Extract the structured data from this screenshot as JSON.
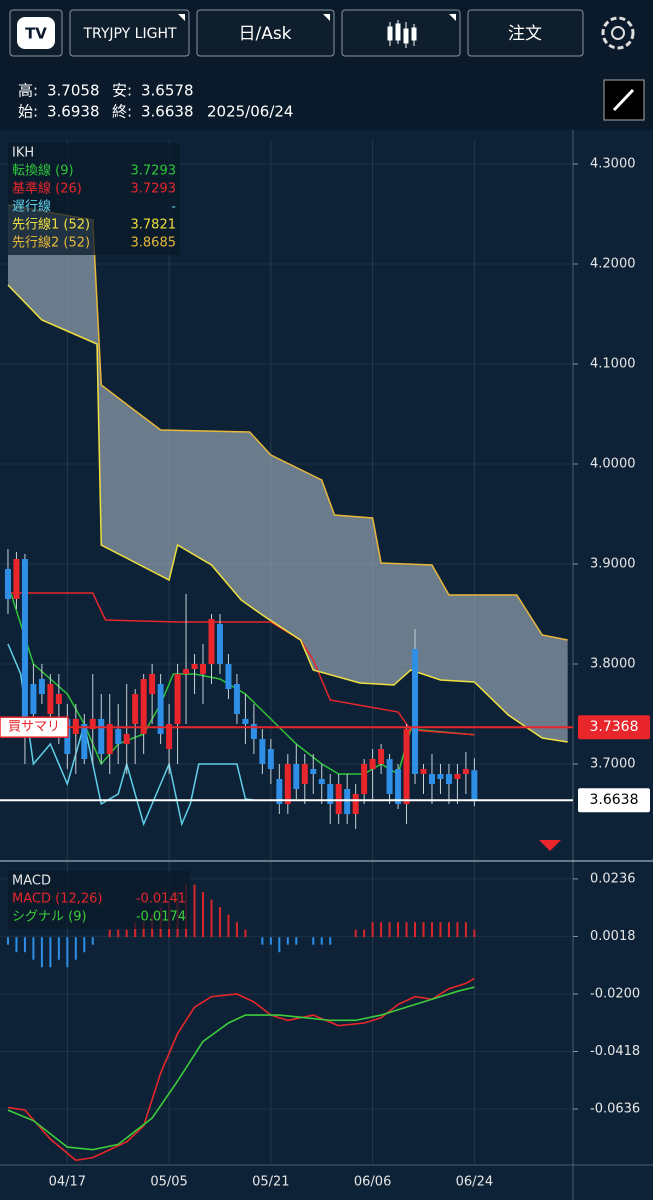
{
  "toolbar": {
    "symbol": "TRYJPY LIGHT",
    "price_type": "日/Ask",
    "order": "注文"
  },
  "info": {
    "high_label": "高:",
    "high": "3.7058",
    "low_label": "安:",
    "low": "3.6578",
    "open_label": "始:",
    "open": "3.6938",
    "close_label": "終:",
    "close": "3.6638",
    "date": "2025/06/24"
  },
  "chart_data": [
    {
      "type": "candlestick",
      "title": "IKH",
      "xlim": [
        -0.94,
        66.63
      ],
      "xticks": [
        {
          "value": 7,
          "label": "04/17"
        },
        {
          "value": 19,
          "label": "05/05"
        },
        {
          "value": 31,
          "label": "05/21"
        },
        {
          "value": 43,
          "label": "06/06"
        },
        {
          "value": 55,
          "label": "06/24"
        }
      ],
      "ylim": [
        3.604,
        4.324
      ],
      "yticks": [
        {
          "value": 3.7,
          "label": "3.7000"
        },
        {
          "value": 3.8,
          "label": "3.8000"
        },
        {
          "value": 3.9,
          "label": "3.9000"
        },
        {
          "value": 4.0,
          "label": "4.0000"
        },
        {
          "value": 4.1,
          "label": "4.1000"
        },
        {
          "value": 4.2,
          "label": "4.2000"
        },
        {
          "value": 4.3,
          "label": "4.3000"
        }
      ],
      "grid": true,
      "candles": {
        "up_color": "#e8262b",
        "down_color": "#2f8fe6",
        "open": [
          3.895,
          3.865,
          3.905,
          3.78,
          3.785,
          3.75,
          3.76,
          3.745,
          3.73,
          3.74,
          3.735,
          3.745,
          3.71,
          3.735,
          3.72,
          3.74,
          3.73,
          3.77,
          3.78,
          3.715,
          3.74,
          3.79,
          3.795,
          3.79,
          3.8,
          3.84,
          3.8,
          3.78,
          3.745,
          3.74,
          3.725,
          3.715,
          3.685,
          3.66,
          3.7,
          3.68,
          3.695,
          3.685,
          3.68,
          3.65,
          3.675,
          3.65,
          3.67,
          3.695,
          3.7,
          3.705,
          3.695,
          3.66,
          3.815,
          3.69,
          3.69,
          3.69,
          3.69,
          3.685,
          3.69,
          3.6938
        ],
        "high": [
          3.915,
          3.912,
          3.91,
          3.8,
          3.8,
          3.79,
          3.79,
          3.76,
          3.76,
          3.75,
          3.79,
          3.77,
          3.77,
          3.76,
          3.78,
          3.775,
          3.79,
          3.8,
          3.79,
          3.76,
          3.8,
          3.87,
          3.81,
          3.82,
          3.85,
          3.85,
          3.81,
          3.79,
          3.77,
          3.76,
          3.735,
          3.725,
          3.7,
          3.71,
          3.72,
          3.71,
          3.71,
          3.7,
          3.69,
          3.69,
          3.69,
          3.68,
          3.705,
          3.715,
          3.72,
          3.71,
          3.7,
          3.74,
          3.835,
          3.7,
          3.71,
          3.7,
          3.7,
          3.7,
          3.712,
          3.7058
        ],
        "low": [
          3.85,
          3.855,
          3.7,
          3.745,
          3.76,
          3.735,
          3.72,
          3.695,
          3.69,
          3.7,
          3.7,
          3.7,
          3.69,
          3.7,
          3.69,
          3.7,
          3.71,
          3.74,
          3.72,
          3.69,
          3.7,
          3.74,
          3.77,
          3.76,
          3.78,
          3.79,
          3.765,
          3.74,
          3.72,
          3.71,
          3.69,
          3.68,
          3.65,
          3.65,
          3.665,
          3.66,
          3.67,
          3.66,
          3.64,
          3.64,
          3.64,
          3.635,
          3.66,
          3.665,
          3.69,
          3.66,
          3.655,
          3.64,
          3.68,
          3.67,
          3.66,
          3.67,
          3.66,
          3.66,
          3.67,
          3.6578
        ],
        "close": [
          3.865,
          3.905,
          3.735,
          3.75,
          3.77,
          3.78,
          3.77,
          3.71,
          3.745,
          3.705,
          3.745,
          3.71,
          3.74,
          3.72,
          3.73,
          3.77,
          3.785,
          3.79,
          3.73,
          3.74,
          3.79,
          3.795,
          3.8,
          3.8,
          3.845,
          3.8,
          3.775,
          3.75,
          3.74,
          3.725,
          3.7,
          3.695,
          3.66,
          3.7,
          3.675,
          3.7,
          3.69,
          3.68,
          3.66,
          3.68,
          3.65,
          3.67,
          3.7,
          3.705,
          3.715,
          3.67,
          3.66,
          3.735,
          3.69,
          3.695,
          3.68,
          3.685,
          3.68,
          3.69,
          3.695,
          3.6638
        ]
      },
      "cloud_color": "#a9b8c6",
      "series": [
        {
          "name": "転換線 (9)",
          "legend_value": "3.7293",
          "color": "#2fc43a",
          "x": [
            0,
            3,
            7,
            9,
            11,
            13,
            16,
            18,
            19.5,
            22,
            25,
            28,
            31,
            34,
            37,
            39,
            42,
            44,
            46,
            47.5,
            55
          ],
          "values": [
            3.88,
            3.8,
            3.77,
            3.74,
            3.7,
            3.72,
            3.73,
            3.76,
            3.79,
            3.79,
            3.785,
            3.77,
            3.745,
            3.72,
            3.7,
            3.69,
            3.69,
            3.7,
            3.69,
            3.735,
            3.7293
          ]
        },
        {
          "name": "基準線 (26)",
          "legend_value": "3.7293",
          "color": "#e8262b",
          "x": [
            0,
            10,
            11.5,
            20,
            31,
            34.5,
            36,
            38,
            42,
            46,
            47.5,
            55
          ],
          "values": [
            3.871,
            3.871,
            3.844,
            3.842,
            3.842,
            3.824,
            3.804,
            3.764,
            3.758,
            3.752,
            3.734,
            3.7293
          ]
        },
        {
          "name": "遅行線",
          "legend_value": "-",
          "color": "#5fd0e8",
          "x": [
            0,
            1.5,
            3,
            5,
            7,
            9,
            11,
            13,
            14,
            16,
            17.5,
            19,
            20.5,
            21.5,
            22.5,
            25,
            27,
            28,
            29
          ],
          "values": [
            3.82,
            3.79,
            3.7,
            3.72,
            3.68,
            3.74,
            3.66,
            3.67,
            3.7,
            3.64,
            3.67,
            3.7,
            3.64,
            3.66,
            3.7,
            3.7,
            3.7,
            3.665,
            3.664
          ]
        },
        {
          "name": "先行線1 (52)",
          "legend_value": "3.7821",
          "color": "#f0e040",
          "x": [
            0,
            4,
            10.5,
            11,
            19,
            20,
            24,
            27.5,
            30,
            34.5,
            36,
            41.5,
            45.5,
            47.5,
            51,
            55,
            59,
            63,
            66
          ],
          "values": [
            4.179,
            4.144,
            4.12,
            3.919,
            3.884,
            3.919,
            3.899,
            3.864,
            3.849,
            3.824,
            3.794,
            3.781,
            3.779,
            3.794,
            3.784,
            3.782,
            3.749,
            3.726,
            3.722
          ]
        },
        {
          "name": "先行線2 (52)",
          "legend_value": "3.8685",
          "color": "#e8b83a",
          "x": [
            0,
            10,
            11,
            18,
            28.5,
            31,
            37,
            38.5,
            43,
            44,
            50,
            52,
            60,
            63,
            66
          ],
          "values": [
            4.259,
            4.244,
            4.079,
            4.034,
            4.032,
            4.009,
            3.984,
            3.949,
            3.946,
            3.901,
            3.899,
            3.869,
            3.869,
            3.829,
            3.824
          ]
        }
      ],
      "lines": [
        {
          "label": "買サマリ",
          "value": 3.7368,
          "color": "#e8262b"
        },
        {
          "value": 3.6638,
          "color": "#ffffff"
        }
      ]
    },
    {
      "type": "macd",
      "title": "MACD",
      "ylim": [
        -0.0848,
        0.03
      ],
      "yticks": [
        0.0236,
        0.0018,
        {
          "value": -0.02,
          "label": "-0.0200"
        },
        -0.0418,
        -0.0636
      ],
      "y2lim": [
        -0.0303,
        0.01
      ],
      "series": [
        {
          "name": "MACD (12,26)",
          "legend_value": "-0.0141",
          "color": "#e8262b",
          "x": [
            0,
            2,
            5,
            8,
            10,
            14,
            16,
            18,
            20,
            22,
            24,
            27,
            29,
            31,
            33,
            36,
            39,
            42,
            44,
            46,
            48,
            50,
            52,
            54,
            55
          ],
          "values": [
            -0.063,
            -0.064,
            -0.075,
            -0.083,
            -0.082,
            -0.076,
            -0.07,
            -0.05,
            -0.035,
            -0.025,
            -0.021,
            -0.02,
            -0.023,
            -0.028,
            -0.03,
            -0.028,
            -0.032,
            -0.031,
            -0.029,
            -0.024,
            -0.021,
            -0.022,
            -0.018,
            -0.016,
            -0.0141
          ]
        },
        {
          "name": "シグナル (9)",
          "legend_value": "-0.0174",
          "color": "#3ccc3c",
          "x": [
            0,
            3,
            7,
            10,
            13,
            17,
            20,
            23,
            26,
            28,
            32,
            35,
            38,
            41,
            44,
            47,
            50,
            53,
            55
          ],
          "values": [
            -0.064,
            -0.068,
            -0.078,
            -0.079,
            -0.077,
            -0.067,
            -0.053,
            -0.038,
            -0.031,
            -0.028,
            -0.028,
            -0.029,
            -0.03,
            -0.03,
            -0.028,
            -0.025,
            -0.022,
            -0.019,
            -0.0174
          ]
        }
      ],
      "histogram": {
        "axis": "y2",
        "up_color": "#d9262b",
        "down_color": "#2f8fe6",
        "values": [
          -0.001,
          -0.002,
          -0.002,
          -0.003,
          -0.004,
          -0.004,
          -0.003,
          -0.004,
          -0.003,
          -0.002,
          -0.001,
          0.0,
          0.001,
          0.001,
          0.001,
          0.002,
          0.002,
          0.003,
          0.004,
          0.005,
          0.006,
          0.007,
          0.007,
          0.006,
          0.005,
          0.004,
          0.003,
          0.002,
          0.001,
          0.0,
          -0.001,
          -0.001,
          -0.002,
          -0.001,
          -0.001,
          0.0,
          -0.001,
          -0.001,
          -0.001,
          0.0,
          0.0,
          0.001,
          0.001,
          0.002,
          0.002,
          0.002,
          0.002,
          0.002,
          0.002,
          0.002,
          0.002,
          0.002,
          0.002,
          0.002,
          0.002,
          0.001
        ]
      }
    }
  ]
}
